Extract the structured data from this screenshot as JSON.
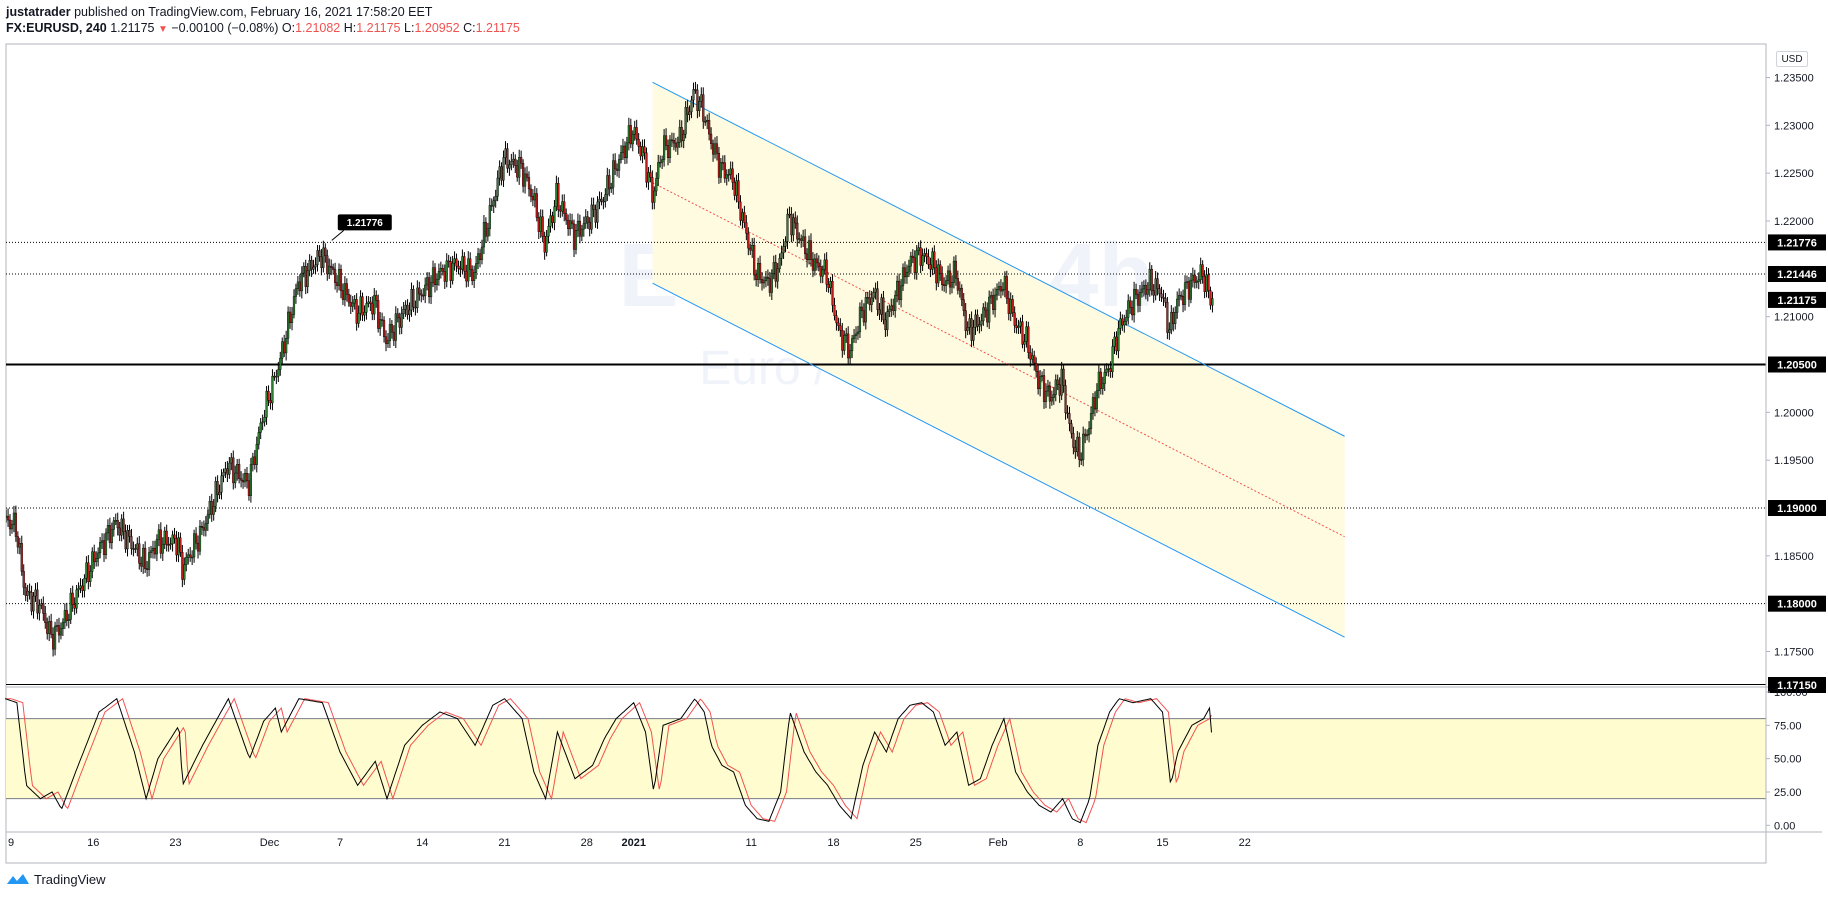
{
  "header": {
    "author": "justatrader",
    "published_text": "published on TradingView.com, February 16, 2021 17:58:20 EET",
    "symbol": "FX:EURUSD, 240",
    "last": "1.21175",
    "arrow": "▼",
    "change": "−0.00100 (−0.08%)",
    "o_label": "O:",
    "o": "1.21082",
    "h_label": "H:",
    "h": "1.21175",
    "l_label": "L:",
    "l": "1.20952",
    "c_label": "C:",
    "c": "1.21175"
  },
  "watermark": {
    "symbol": "EURUSD, 4h",
    "name": "Euro / U.S. Dollar"
  },
  "currency_button": "USD",
  "footer": {
    "brand": "TradingView",
    "icon": "tradingview-logo-icon"
  },
  "colors": {
    "up": "#26a69a",
    "down": "#ef5350",
    "candle_body_up": "#2e7d32",
    "candle_body_down": "#b71c1c",
    "channel_fill": "#fffbe0",
    "channel_line": "#2196f3",
    "median": "#ef5350",
    "stoch_k": "#000000",
    "stoch_d": "#ef5350",
    "stoch_band": "#fffcd0"
  },
  "chart_data": [
    {
      "type": "candlestick",
      "title": "EURUSD, 4h",
      "ylim": [
        1.1715,
        1.2385
      ],
      "y_ticks": [
        "1.23500",
        "1.23000",
        "1.22500",
        "1.22000",
        "1.21500",
        "1.21000",
        "1.20500",
        "1.20000",
        "1.19500",
        "1.19000",
        "1.18500",
        "1.18000",
        "1.17500"
      ],
      "x_ticks": [
        {
          "label": "9",
          "day": 0
        },
        {
          "label": "16",
          "day": 7
        },
        {
          "label": "23",
          "day": 14
        },
        {
          "label": "Dec",
          "day": 22
        },
        {
          "label": "7",
          "day": 28
        },
        {
          "label": "14",
          "day": 35
        },
        {
          "label": "21",
          "day": 42
        },
        {
          "label": "28",
          "day": 49
        },
        {
          "label": "2021",
          "day": 53
        },
        {
          "label": "11",
          "day": 63
        },
        {
          "label": "18",
          "day": 70
        },
        {
          "label": "25",
          "day": 77
        },
        {
          "label": "Feb",
          "day": 84
        },
        {
          "label": "8",
          "day": 91
        },
        {
          "label": "15",
          "day": 98
        },
        {
          "label": "22",
          "day": 105
        }
      ],
      "price_path": [
        [
          -0.5,
          1.189
        ],
        [
          0.5,
          1.188
        ],
        [
          1.3,
          1.181
        ],
        [
          2.5,
          1.18
        ],
        [
          3.5,
          1.1765
        ],
        [
          4.3,
          1.1775
        ],
        [
          5.5,
          1.1805
        ],
        [
          7.5,
          1.1855
        ],
        [
          9,
          1.1885
        ],
        [
          10.5,
          1.186
        ],
        [
          11.5,
          1.184
        ],
        [
          12.5,
          1.1865
        ],
        [
          14.3,
          1.1865
        ],
        [
          14.6,
          1.1835
        ],
        [
          16.3,
          1.1875
        ],
        [
          18.5,
          1.1945
        ],
        [
          20.3,
          1.1925
        ],
        [
          21.5,
          1.1995
        ],
        [
          22.5,
          1.2035
        ],
        [
          23,
          1.2055
        ],
        [
          24.5,
          1.2135
        ],
        [
          26.5,
          1.2165
        ],
        [
          28,
          1.2135
        ],
        [
          29.5,
          1.2105
        ],
        [
          31,
          1.2115
        ],
        [
          32,
          1.2075
        ],
        [
          33.5,
          1.2105
        ],
        [
          35,
          1.2125
        ],
        [
          36.5,
          1.2145
        ],
        [
          38,
          1.2155
        ],
        [
          39.5,
          1.2145
        ],
        [
          41,
          1.2215
        ],
        [
          42,
          1.2265
        ],
        [
          43.5,
          1.2255
        ],
        [
          44.5,
          1.2225
        ],
        [
          45.5,
          1.2175
        ],
        [
          46.5,
          1.2225
        ],
        [
          48,
          1.2185
        ],
        [
          49.5,
          1.2205
        ],
        [
          50.5,
          1.2225
        ],
        [
          51.5,
          1.2255
        ],
        [
          53,
          1.2295
        ],
        [
          54,
          1.2265
        ],
        [
          54.7,
          1.2225
        ],
        [
          55.5,
          1.2275
        ],
        [
          57,
          1.2285
        ],
        [
          58.2,
          1.2335
        ],
        [
          59,
          1.2315
        ],
        [
          59.6,
          1.2285
        ],
        [
          60.5,
          1.2255
        ],
        [
          61.5,
          1.2245
        ],
        [
          62.5,
          1.2195
        ],
        [
          63.5,
          1.2145
        ],
        [
          64.5,
          1.2135
        ],
        [
          65.5,
          1.2155
        ],
        [
          66.3,
          1.2205
        ],
        [
          67.5,
          1.2175
        ],
        [
          68.5,
          1.2155
        ],
        [
          69.5,
          1.2145
        ],
        [
          70.5,
          1.2085
        ],
        [
          71.5,
          1.2065
        ],
        [
          72.5,
          1.2105
        ],
        [
          73.5,
          1.2125
        ],
        [
          74.5,
          1.2095
        ],
        [
          75.5,
          1.2125
        ],
        [
          76.5,
          1.2155
        ],
        [
          77.5,
          1.2165
        ],
        [
          78.5,
          1.2155
        ],
        [
          79.5,
          1.2135
        ],
        [
          80.5,
          1.2145
        ],
        [
          81.5,
          1.2085
        ],
        [
          82.5,
          1.2095
        ],
        [
          83.5,
          1.2115
        ],
        [
          84.5,
          1.2135
        ],
        [
          85.5,
          1.2095
        ],
        [
          86.5,
          1.2075
        ],
        [
          87.5,
          1.2035
        ],
        [
          88.5,
          1.2015
        ],
        [
          89.5,
          1.2035
        ],
        [
          90.3,
          1.1975
        ],
        [
          91,
          1.1955
        ],
        [
          91.8,
          1.1985
        ],
        [
          92.5,
          1.2025
        ],
        [
          93.5,
          1.2045
        ],
        [
          94.3,
          1.2085
        ],
        [
          95.5,
          1.2115
        ],
        [
          97,
          1.2135
        ],
        [
          98,
          1.2125
        ],
        [
          98.7,
          1.2085
        ],
        [
          99.3,
          1.2115
        ],
        [
          100.5,
          1.2135
        ],
        [
          101.5,
          1.2145
        ],
        [
          102,
          1.2125
        ],
        [
          102.3,
          1.21175
        ]
      ],
      "channel": {
        "upper": [
          [
            54.6,
            1.2345
          ],
          [
            113.5,
            1.1975
          ]
        ],
        "lower": [
          [
            54.6,
            1.2135
          ],
          [
            113.5,
            1.1765
          ]
        ],
        "median": [
          [
            54.6,
            1.224
          ],
          [
            113.5,
            1.187
          ]
        ]
      },
      "annotation": {
        "label": "1.21776",
        "price": 1.21776,
        "day": 27.3
      },
      "horizontal_lines": [
        {
          "price": 1.21776,
          "style": "dotted",
          "label": "1.21776"
        },
        {
          "price": 1.21446,
          "style": "dotted",
          "label": "1.21446"
        },
        {
          "price": 1.205,
          "style": "solid",
          "label": "1.20500"
        },
        {
          "price": 1.19,
          "style": "dotted",
          "label": "1.19000"
        },
        {
          "price": 1.18,
          "style": "dotted",
          "label": "1.18000"
        },
        {
          "price": 1.1715,
          "style": "solid",
          "label": "1.17150"
        }
      ],
      "last_price": {
        "price": 1.21175,
        "label": "1.21175"
      }
    },
    {
      "type": "line",
      "title": "Stochastic",
      "ylim": [
        -5,
        103
      ],
      "y_ticks": [
        "100.00",
        "75.00",
        "50.00",
        "25.00",
        "0.00"
      ],
      "band": [
        20,
        80
      ],
      "k_path": [
        [
          -0.5,
          95
        ],
        [
          0.5,
          92
        ],
        [
          1.3,
          30
        ],
        [
          2.5,
          20
        ],
        [
          3.5,
          25
        ],
        [
          4.3,
          12
        ],
        [
          5.5,
          40
        ],
        [
          7.5,
          85
        ],
        [
          9,
          95
        ],
        [
          10.5,
          55
        ],
        [
          11.5,
          20
        ],
        [
          12.5,
          50
        ],
        [
          14.3,
          75
        ],
        [
          14.6,
          30
        ],
        [
          16.3,
          60
        ],
        [
          18.5,
          95
        ],
        [
          20.3,
          50
        ],
        [
          21.5,
          78
        ],
        [
          22.5,
          88
        ],
        [
          23,
          70
        ],
        [
          24.5,
          95
        ],
        [
          26.5,
          92
        ],
        [
          28,
          55
        ],
        [
          29.5,
          30
        ],
        [
          31,
          48
        ],
        [
          32,
          20
        ],
        [
          33.5,
          60
        ],
        [
          35,
          75
        ],
        [
          36.5,
          85
        ],
        [
          38,
          80
        ],
        [
          39.5,
          60
        ],
        [
          41,
          90
        ],
        [
          42,
          95
        ],
        [
          43.5,
          80
        ],
        [
          44.5,
          40
        ],
        [
          45.5,
          20
        ],
        [
          46.5,
          70
        ],
        [
          48,
          35
        ],
        [
          49.5,
          45
        ],
        [
          50.5,
          65
        ],
        [
          51.5,
          80
        ],
        [
          53,
          92
        ],
        [
          54,
          70
        ],
        [
          54.7,
          25
        ],
        [
          55.5,
          75
        ],
        [
          57,
          80
        ],
        [
          58.2,
          95
        ],
        [
          59,
          85
        ],
        [
          59.6,
          60
        ],
        [
          60.5,
          45
        ],
        [
          61.5,
          40
        ],
        [
          62.5,
          15
        ],
        [
          63.5,
          5
        ],
        [
          64.5,
          3
        ],
        [
          65.5,
          25
        ],
        [
          66.3,
          85
        ],
        [
          67.5,
          55
        ],
        [
          68.5,
          40
        ],
        [
          69.5,
          30
        ],
        [
          70.5,
          15
        ],
        [
          71.5,
          5
        ],
        [
          72.5,
          45
        ],
        [
          73.5,
          70
        ],
        [
          74.5,
          55
        ],
        [
          75.5,
          80
        ],
        [
          76.5,
          90
        ],
        [
          77.5,
          92
        ],
        [
          78.5,
          85
        ],
        [
          79.5,
          60
        ],
        [
          80.5,
          70
        ],
        [
          81.5,
          30
        ],
        [
          82.5,
          35
        ],
        [
          83.5,
          60
        ],
        [
          84.5,
          80
        ],
        [
          85.5,
          40
        ],
        [
          86.5,
          25
        ],
        [
          87.5,
          15
        ],
        [
          88.5,
          10
        ],
        [
          89.5,
          20
        ],
        [
          90.3,
          5
        ],
        [
          91,
          2
        ],
        [
          91.8,
          20
        ],
        [
          92.5,
          60
        ],
        [
          93.5,
          85
        ],
        [
          94.3,
          95
        ],
        [
          95.5,
          92
        ],
        [
          97,
          95
        ],
        [
          98,
          85
        ],
        [
          98.7,
          30
        ],
        [
          99.3,
          55
        ],
        [
          100.5,
          75
        ],
        [
          101.5,
          80
        ],
        [
          102,
          88
        ],
        [
          102.3,
          55
        ]
      ],
      "d_lag_days": 0.5
    }
  ]
}
